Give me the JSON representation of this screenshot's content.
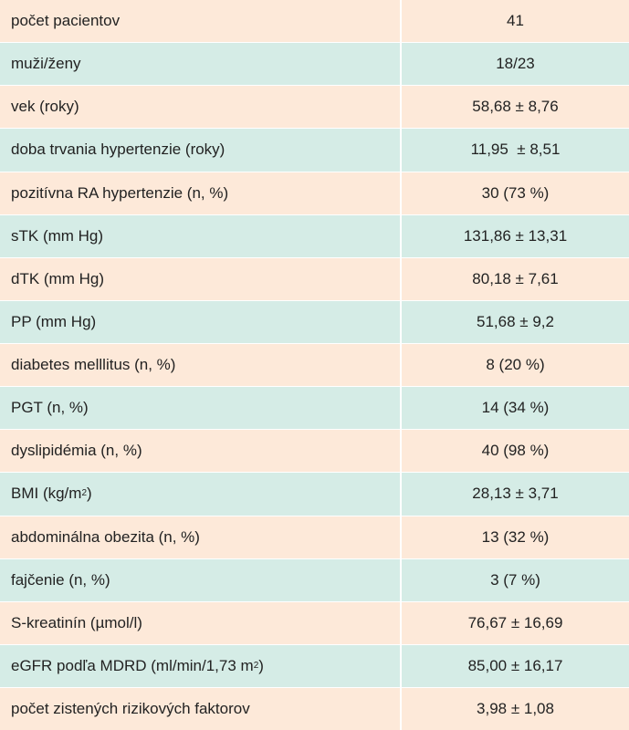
{
  "rows": [
    {
      "label": "počet pacientov",
      "value": "41"
    },
    {
      "label": "muži/ženy",
      "value": "18/23"
    },
    {
      "label": "vek (roky)",
      "value": "58,68 ± 8,76"
    },
    {
      "label": "doba trvania hypertenzie (roky)",
      "value": "11,95  ± 8,51"
    },
    {
      "label": "pozitívna RA hypertenzie (n, %)",
      "value": "30 (73 %)"
    },
    {
      "label": "sTK (mm Hg)",
      "value": "131,86 ± 13,31"
    },
    {
      "label": "dTK (mm Hg)",
      "value": "80,18 ± 7,61"
    },
    {
      "label": "PP (mm Hg)",
      "value": "51,68 ± 9,2"
    },
    {
      "label": "diabetes melllitus (n, %)",
      "value": "8 (20 %)"
    },
    {
      "label": "PGT (n, %)",
      "value": "14 (34 %)"
    },
    {
      "label": "dyslipidémia (n, %)",
      "value": "40 (98 %)"
    },
    {
      "label_pre": "BMI (kg/m",
      "label_sup": "2",
      "label_post": ")",
      "value": "28,13 ± 3,71"
    },
    {
      "label": "abdominálna obezita (n, %)",
      "value": "13 (32 %)"
    },
    {
      "label": "fajčenie (n, %)",
      "value": "3 (7 %)"
    },
    {
      "label": "S-kreatinín (µmol/l)",
      "value": "76,67 ± 16,69"
    },
    {
      "label_pre": "eGFR podľa MDRD (ml/min/1,73 m",
      "label_sup": "2",
      "label_post": ")",
      "value": "85,00 ± 16,17"
    },
    {
      "label": "počet zistených rizikových faktorov",
      "value": "3,98 ± 1,08"
    }
  ]
}
